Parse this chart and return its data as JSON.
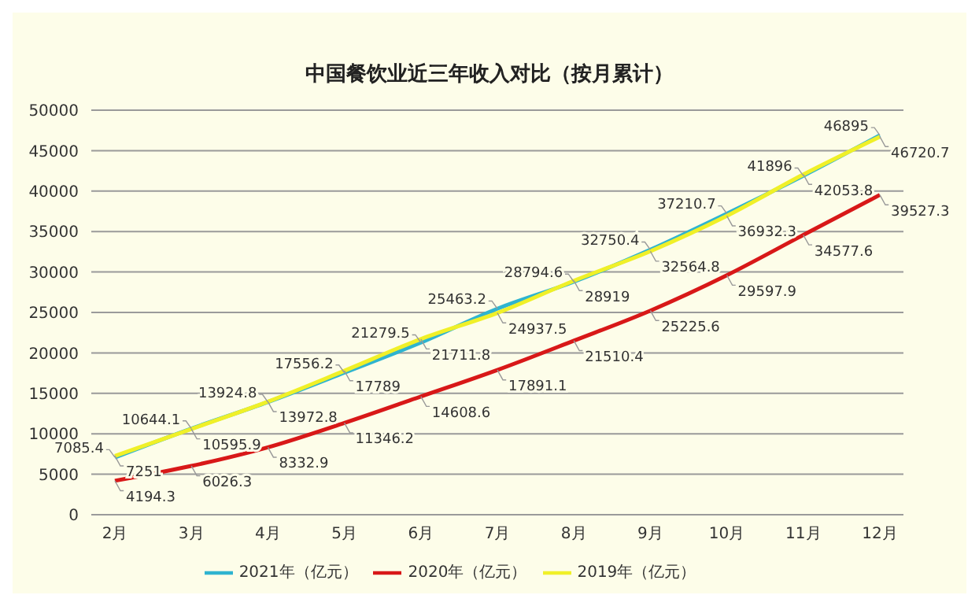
{
  "chart_data": {
    "type": "line",
    "title": "中国餐饮业近三年收入对比（按月累计）",
    "categories": [
      "2月",
      "3月",
      "4月",
      "5月",
      "6月",
      "7月",
      "8月",
      "9月",
      "10月",
      "11月",
      "12月"
    ],
    "series": [
      {
        "name": "2021年（亿元）",
        "color": "#2fb4d0",
        "values": [
          7085.4,
          10644.1,
          13924.8,
          17556.2,
          21279.5,
          25463.2,
          28794.6,
          32750.4,
          37210.7,
          41896,
          46895
        ]
      },
      {
        "name": "2020年（亿元）",
        "color": "#d81818",
        "values": [
          4194.3,
          6026.3,
          8332.9,
          11346.2,
          14608.6,
          17891.1,
          21510.4,
          25225.6,
          29597.9,
          34577.6,
          39527.3
        ]
      },
      {
        "name": "2019年（亿元）",
        "color": "#f0f028",
        "values": [
          7251,
          10595.9,
          13972.8,
          17789,
          21711.8,
          24937.5,
          28919,
          32564.8,
          36932.3,
          42053.8,
          46720.7
        ]
      }
    ],
    "ylim": [
      0,
      50000
    ],
    "yticks": [
      0,
      5000,
      10000,
      15000,
      20000,
      25000,
      30000,
      35000,
      40000,
      45000,
      50000
    ],
    "grid": "y",
    "legend": "bottom",
    "marker": "none",
    "line_style": "solid",
    "data_labels": true
  }
}
